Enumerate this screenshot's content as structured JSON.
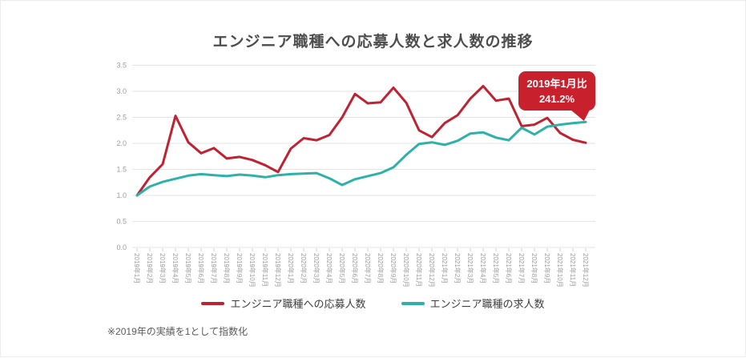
{
  "page": {
    "title": "エンジニア職種への応募人数と求人数の推移"
  },
  "callout": {
    "line1": "2019年1月比",
    "line2": "241.2%",
    "bg_color": "#c9202e",
    "text_color": "#ffffff"
  },
  "legend": {
    "items": [
      {
        "label": "エンジニア職種への応募人数",
        "color": "#bf2232"
      },
      {
        "label": "エンジニア職種の求人数",
        "color": "#2eb1a8"
      }
    ]
  },
  "footnote": "※2019年の実績を1として指数化",
  "chart_data": {
    "type": "line",
    "title": "エンジニア職種への応募人数と求人数の推移",
    "categories": [
      "2019年1月",
      "2019年2月",
      "2019年3月",
      "2019年4月",
      "2019年5月",
      "2019年6月",
      "2019年7月",
      "2019年8月",
      "2019年9月",
      "2019年10月",
      "2019年11月",
      "2019年12月",
      "2020年1月",
      "2020年2月",
      "2020年3月",
      "2020年4月",
      "2020年5月",
      "2020年6月",
      "2020年7月",
      "2020年8月",
      "2020年9月",
      "2020年10月",
      "2020年11月",
      "2020年12月",
      "2021年1月",
      "2021年2月",
      "2021年3月",
      "2021年4月",
      "2021年5月",
      "2021年6月",
      "2021年7月",
      "2021年8月",
      "2021年9月",
      "2021年10月",
      "2021年11月",
      "2021年12月"
    ],
    "series": [
      {
        "name": "エンジニア職種への応募人数",
        "color": "#bf2232",
        "values": [
          1.0,
          1.35,
          1.6,
          2.53,
          2.02,
          1.81,
          1.91,
          1.71,
          1.74,
          1.68,
          1.58,
          1.45,
          1.9,
          2.1,
          2.06,
          2.16,
          2.5,
          2.95,
          2.77,
          2.79,
          3.07,
          2.78,
          2.25,
          2.12,
          2.39,
          2.54,
          2.86,
          3.1,
          2.82,
          2.86,
          2.33,
          2.36,
          2.49,
          2.2,
          2.07,
          2.01
        ]
      },
      {
        "name": "エンジニア職種の求人数",
        "color": "#2eb1a8",
        "values": [
          1.0,
          1.17,
          1.26,
          1.32,
          1.38,
          1.41,
          1.39,
          1.37,
          1.4,
          1.38,
          1.35,
          1.39,
          1.41,
          1.42,
          1.43,
          1.33,
          1.2,
          1.31,
          1.37,
          1.43,
          1.54,
          1.78,
          1.99,
          2.02,
          1.97,
          2.05,
          2.19,
          2.21,
          2.11,
          2.06,
          2.3,
          2.17,
          2.32,
          2.36,
          2.39,
          2.41
        ]
      }
    ],
    "xlabel": "",
    "ylabel": "",
    "ylim": [
      0,
      3.5
    ],
    "y_ticks": [
      0.0,
      0.5,
      1.0,
      1.5,
      2.0,
      2.5,
      3.0,
      3.5
    ],
    "grid": true,
    "x_tick_rotation": 90,
    "legend_position": "bottom",
    "annotation": {
      "text": "2019年1月比 241.2%",
      "series": "エンジニア職種の求人数",
      "category": "2021年12月",
      "value_pct": "241.2%"
    }
  }
}
